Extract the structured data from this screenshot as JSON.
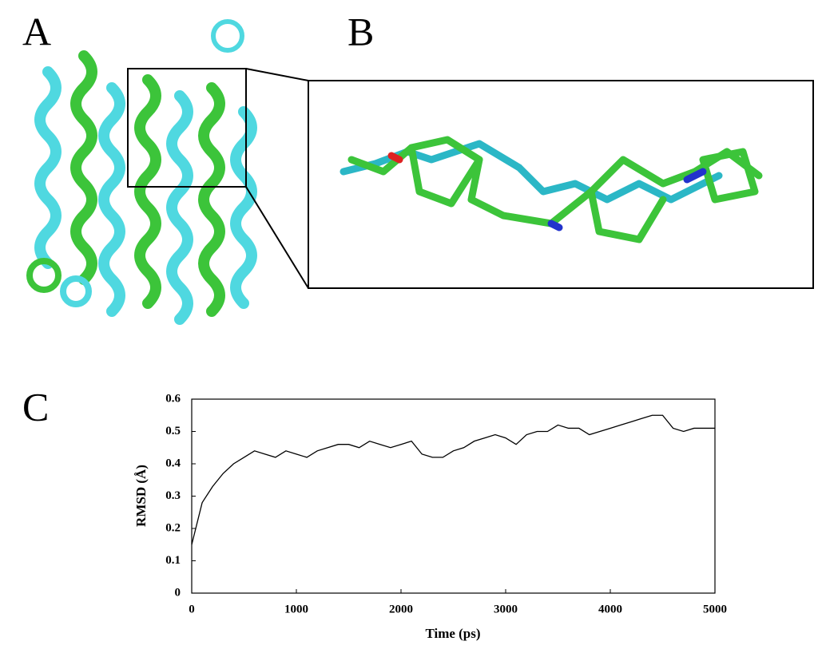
{
  "panels": [
    "A",
    "B",
    "C"
  ],
  "chart_data": {
    "type": "line",
    "x_label": "Time (ps)",
    "y_label": "RMSD (Å)",
    "x": [
      0,
      100,
      200,
      300,
      400,
      500,
      600,
      700,
      800,
      900,
      1000,
      1100,
      1200,
      1300,
      1400,
      1500,
      1600,
      1700,
      1800,
      1900,
      2000,
      2100,
      2200,
      2300,
      2400,
      2500,
      2600,
      2700,
      2800,
      2900,
      3000,
      3100,
      3200,
      3300,
      3400,
      3500,
      3600,
      3700,
      3800,
      3900,
      4000,
      4100,
      4200,
      4300,
      4400,
      4500,
      4600,
      4700,
      4800,
      4900,
      5000
    ],
    "series": [
      {
        "name": "RMSD",
        "color": "#000000",
        "values": [
          0.15,
          0.28,
          0.33,
          0.37,
          0.4,
          0.42,
          0.44,
          0.43,
          0.42,
          0.44,
          0.43,
          0.42,
          0.44,
          0.45,
          0.46,
          0.46,
          0.45,
          0.47,
          0.46,
          0.45,
          0.46,
          0.47,
          0.43,
          0.42,
          0.42,
          0.44,
          0.45,
          0.47,
          0.48,
          0.49,
          0.48,
          0.46,
          0.49,
          0.5,
          0.5,
          0.52,
          0.51,
          0.51,
          0.49,
          0.5,
          0.51,
          0.52,
          0.53,
          0.54,
          0.55,
          0.55,
          0.51,
          0.5,
          0.51,
          0.51,
          0.51
        ]
      }
    ],
    "xlim": [
      0,
      5000
    ],
    "ylim": [
      0,
      0.6
    ],
    "xticks": [
      0,
      1000,
      2000,
      3000,
      4000,
      5000
    ],
    "yticks": [
      0,
      0.1,
      0.2,
      0.3,
      0.4,
      0.5,
      0.6
    ]
  }
}
